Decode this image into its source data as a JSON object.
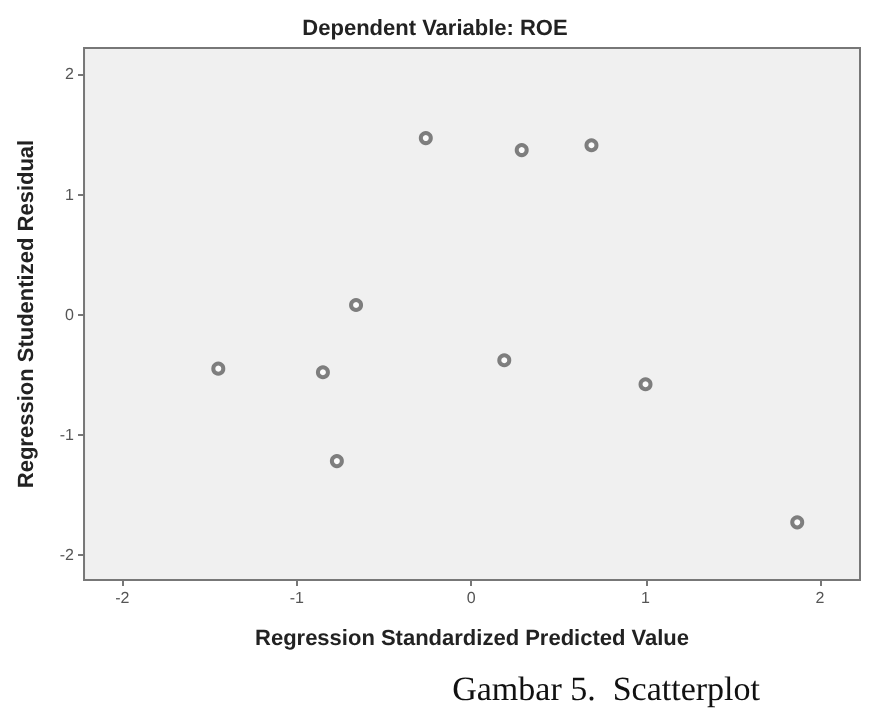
{
  "chart_data": {
    "type": "scatter",
    "title": "Dependent Variable: ROE",
    "xlabel": "Regression Standardized Predicted Value",
    "ylabel": "Regression Studentized Residual",
    "annotations": [
      "Gambar 5.  Scatterplot"
    ],
    "x": [
      -0.26,
      0.29,
      0.69,
      -0.66,
      -1.45,
      -0.85,
      0.19,
      1.0,
      -0.77,
      1.87
    ],
    "series": [
      {
        "color": "#606060",
        "values": [
          1.47,
          1.37,
          1.41,
          0.08,
          -0.45,
          -0.48,
          -0.38,
          -0.58,
          -1.22,
          -1.73
        ]
      }
    ],
    "xlim": [
      -2.22,
      2.23
    ],
    "xticks": [
      -2,
      -1,
      0,
      1,
      2
    ],
    "ylim": [
      -2.21,
      2.22
    ],
    "yticks": [
      -2,
      -1,
      0,
      1,
      2
    ],
    "marker": "circle",
    "grid": false
  }
}
